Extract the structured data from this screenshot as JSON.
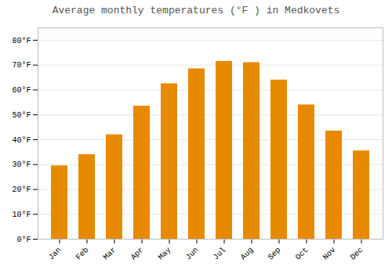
{
  "chart_data": {
    "type": "bar",
    "title": "Average monthly temperatures (°F ) in Medkovets",
    "categories": [
      "Jan",
      "Feb",
      "Mar",
      "Apr",
      "May",
      "Jun",
      "Jul",
      "Aug",
      "Sep",
      "Oct",
      "Nov",
      "Dec"
    ],
    "values": [
      29.5,
      34.0,
      42.0,
      53.5,
      62.5,
      68.5,
      71.5,
      71.0,
      64.0,
      54.0,
      43.5,
      35.5
    ],
    "color": "#E88A00",
    "ylim": [
      0,
      85
    ],
    "yticks": [
      {
        "value": 0,
        "label": "0°F"
      },
      {
        "value": 10,
        "label": "10°F"
      },
      {
        "value": 20,
        "label": "20°F"
      },
      {
        "value": 30,
        "label": "30°F"
      },
      {
        "value": 40,
        "label": "40°F"
      },
      {
        "value": 50,
        "label": "50°F"
      },
      {
        "value": 60,
        "label": "60°F"
      },
      {
        "value": 70,
        "label": "70°F"
      },
      {
        "value": 80,
        "label": "80°F"
      }
    ],
    "grid": true
  }
}
